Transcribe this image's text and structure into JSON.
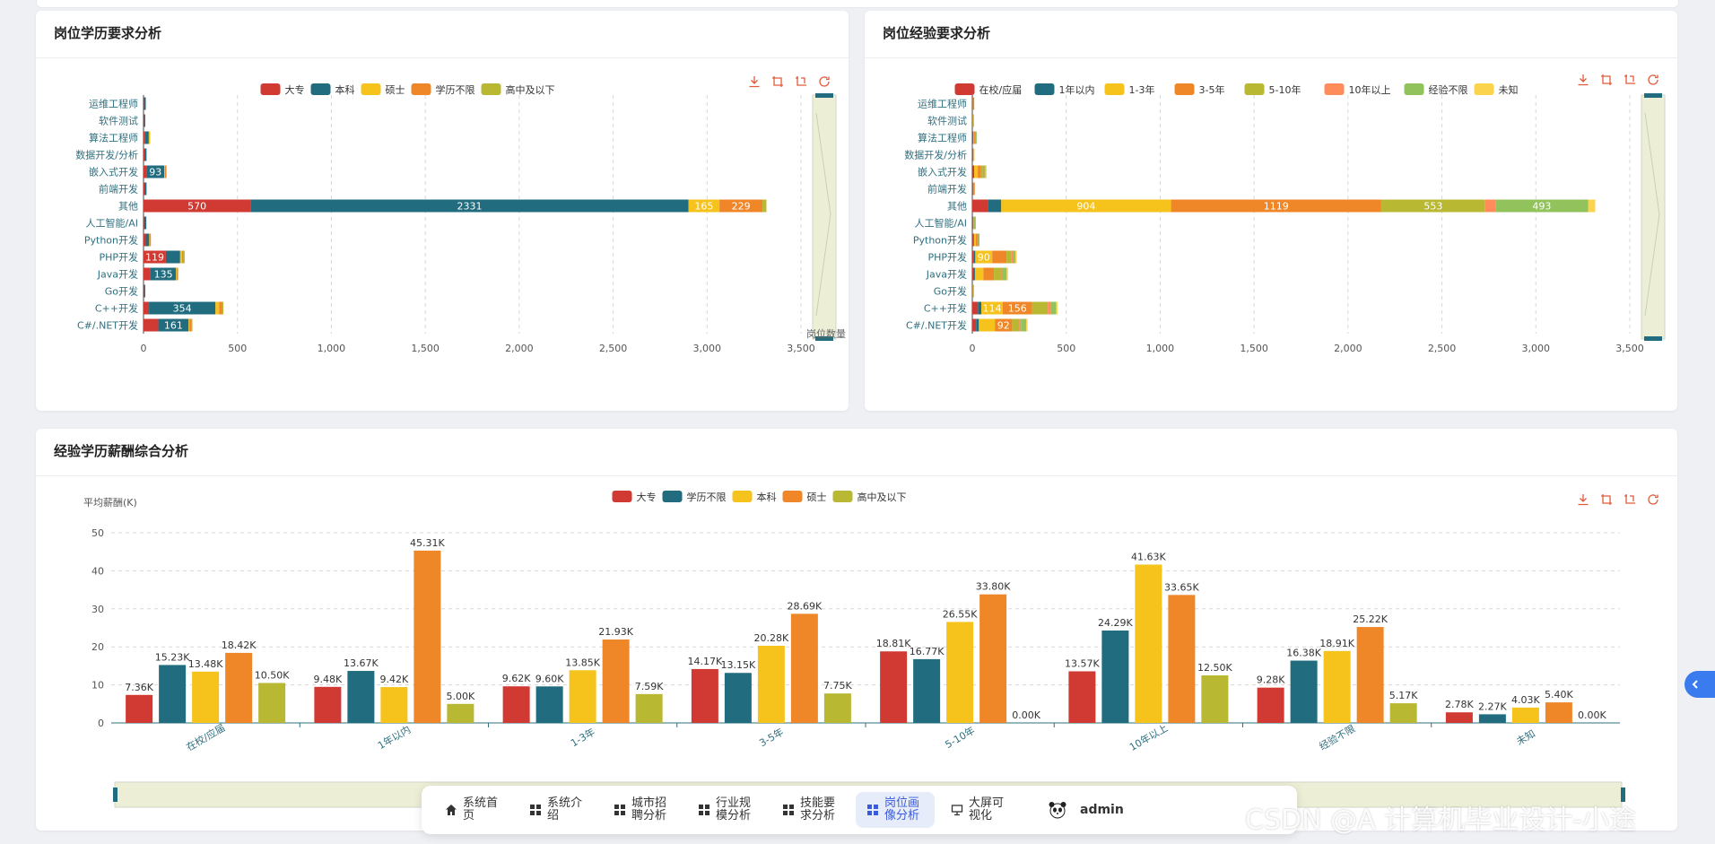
{
  "colors": {
    "c0": "#d13a32",
    "c1": "#216d7f",
    "c2": "#f6c21c",
    "c3": "#ef8728",
    "c4": "#b8b832",
    "c5": "#ff8c5a",
    "c6": "#91c25c",
    "c7": "#fcd34d",
    "accent": "#3a5bd9"
  },
  "icons": {
    "download": "download-icon",
    "zoom": "zoom-icon",
    "zoom_reset": "zoom-reset-icon",
    "restore": "restore-icon"
  },
  "edu_card": {
    "title": "岗位学历要求分析"
  },
  "exp_card": {
    "title": "岗位经验要求分析"
  },
  "salary_card": {
    "title": "经验学历薪酬综合分析"
  },
  "chart_data": [
    {
      "type": "bar",
      "orientation": "horizontal",
      "stacked": true,
      "categories": [
        "运维工程师",
        "软件测试",
        "算法工程师",
        "数据开发/分析",
        "嵌入式开发",
        "前端开发",
        "其他",
        "人工智能/AI",
        "Python开发",
        "PHP开发",
        "Java开发",
        "Go开发",
        "C++开发",
        "C#/.NET开发"
      ],
      "series": [
        {
          "name": "大专",
          "values": [
            2,
            2,
            8,
            6,
            17,
            6,
            570,
            3,
            12,
            119,
            38,
            2,
            29,
            79
          ]
        },
        {
          "name": "本科",
          "values": [
            10,
            4,
            20,
            10,
            93,
            10,
            2331,
            12,
            18,
            76,
            135,
            5,
            354,
            161
          ]
        },
        {
          "name": "硕士",
          "values": [
            0,
            0,
            3,
            0,
            5,
            0,
            165,
            0,
            2,
            10,
            4,
            0,
            20,
            5
          ]
        },
        {
          "name": "学历不限",
          "values": [
            0,
            0,
            0,
            0,
            3,
            0,
            229,
            0,
            2,
            7,
            5,
            0,
            15,
            8
          ]
        },
        {
          "name": "高中及以下",
          "values": [
            0,
            0,
            0,
            0,
            0,
            0,
            21,
            0,
            0,
            2,
            0,
            0,
            2,
            1
          ]
        }
      ],
      "xlim": [
        0,
        3500
      ],
      "x_ticks": [
        "0",
        "500",
        "1,000",
        "1,500",
        "2,000",
        "2,500",
        "3,000",
        "3,500"
      ],
      "grid": true,
      "legend": "top-center",
      "datazoom_label": "岗位数量"
    },
    {
      "type": "bar",
      "orientation": "horizontal",
      "stacked": true,
      "categories": [
        "运维工程师",
        "软件测试",
        "算法工程师",
        "数据开发/分析",
        "嵌入式开发",
        "前端开发",
        "其他",
        "人工智能/AI",
        "Python开发",
        "PHP开发",
        "Java开发",
        "Go开发",
        "C++开发",
        "C#/.NET开发"
      ],
      "series": [
        {
          "name": "在校/应届",
          "values": [
            1,
            1,
            2,
            2,
            4,
            2,
            84,
            2,
            4,
            8,
            6,
            1,
            30,
            20
          ]
        },
        {
          "name": "1年以内",
          "values": [
            1,
            1,
            3,
            2,
            5,
            2,
            70,
            2,
            4,
            8,
            8,
            1,
            18,
            15
          ]
        },
        {
          "name": "1-3年",
          "values": [
            1,
            1,
            5,
            1,
            20,
            2,
            904,
            4,
            10,
            90,
            45,
            1,
            114,
            85
          ]
        },
        {
          "name": "3-5年",
          "values": [
            1,
            0,
            4,
            0,
            18,
            1,
            1119,
            2,
            8,
            76,
            56,
            0,
            156,
            92
          ]
        },
        {
          "name": "5-10年",
          "values": [
            0,
            0,
            2,
            0,
            10,
            0,
            553,
            1,
            4,
            27,
            40,
            0,
            84,
            38
          ]
        },
        {
          "name": "10年以上",
          "values": [
            0,
            0,
            0,
            0,
            2,
            0,
            55,
            0,
            1,
            8,
            6,
            0,
            14,
            9
          ]
        },
        {
          "name": "经验不限",
          "values": [
            0,
            0,
            2,
            0,
            10,
            0,
            493,
            1,
            2,
            12,
            22,
            0,
            30,
            28
          ]
        },
        {
          "name": "未知",
          "values": [
            0,
            0,
            0,
            0,
            1,
            0,
            38,
            0,
            0,
            2,
            2,
            0,
            4,
            1
          ]
        }
      ],
      "xlim": [
        0,
        3500
      ],
      "x_ticks": [
        "0",
        "500",
        "1,000",
        "1,500",
        "2,000",
        "2,500",
        "3,000",
        "3,500"
      ],
      "grid": true,
      "legend": "top-center"
    },
    {
      "type": "bar",
      "orientation": "vertical",
      "categories": [
        "在校/应届",
        "1年以内",
        "1-3年",
        "3-5年",
        "5-10年",
        "10年以上",
        "经验不限",
        "未知"
      ],
      "series": [
        {
          "name": "大专",
          "values": [
            7.36,
            9.48,
            9.62,
            14.17,
            18.81,
            13.57,
            9.28,
            2.78
          ]
        },
        {
          "name": "学历不限",
          "values": [
            15.23,
            13.67,
            9.6,
            13.15,
            16.77,
            24.29,
            16.38,
            2.27
          ]
        },
        {
          "name": "本科",
          "values": [
            13.48,
            9.42,
            13.85,
            20.28,
            26.55,
            41.63,
            18.91,
            4.03
          ]
        },
        {
          "name": "硕士",
          "values": [
            18.42,
            45.31,
            21.93,
            28.69,
            33.8,
            33.65,
            25.22,
            5.4
          ]
        },
        {
          "name": "高中及以下",
          "values": [
            10.5,
            5.0,
            7.59,
            7.75,
            0.0,
            12.5,
            5.17,
            0.0
          ]
        }
      ],
      "ylabel": "平均薪酬(K)",
      "ylim": [
        0,
        50
      ],
      "y_ticks": [
        "0",
        "10",
        "20",
        "30",
        "40",
        "50"
      ],
      "value_suffix": "K",
      "grid": true,
      "legend": "top-center"
    }
  ],
  "dock": {
    "items": [
      {
        "label": "系统首页",
        "icon": "home-icon"
      },
      {
        "label": "系统介绍",
        "icon": "grid-icon"
      },
      {
        "label": "城市招聘分析",
        "icon": "grid-icon"
      },
      {
        "label": "行业规模分析",
        "icon": "grid-icon"
      },
      {
        "label": "技能要求分析",
        "icon": "grid-icon"
      },
      {
        "label": "岗位画像分析",
        "icon": "grid-icon",
        "active": true
      },
      {
        "label": "大屏可视化",
        "icon": "screen-icon"
      }
    ],
    "user": "admin"
  },
  "watermark": "CSDN @A 计算机毕业设计-小途"
}
